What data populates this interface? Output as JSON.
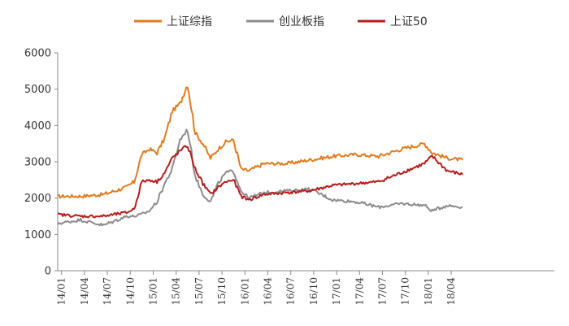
{
  "chart_data": {
    "type": "line",
    "title": "",
    "xlabel": "",
    "ylabel": "",
    "ylim": [
      0,
      6000
    ],
    "yticks": [
      0,
      1000,
      2000,
      3000,
      4000,
      5000,
      6000
    ],
    "xticks": [
      "14/01",
      "14/04",
      "14/07",
      "14/10",
      "15/01",
      "15/04",
      "15/07",
      "15/10",
      "16/01",
      "16/04",
      "16/07",
      "16/10",
      "17/01",
      "17/04",
      "17/07",
      "17/10",
      "18/01",
      "18/04"
    ],
    "legend_position": "top-center",
    "grid": false,
    "series": [
      {
        "name": "上证综指",
        "color": "#E07B1F",
        "x": [
          "2014-01",
          "2014-04",
          "2014-07",
          "2014-10",
          "2014-11",
          "2014-12",
          "2015-01",
          "2015-02",
          "2015-03",
          "2015-04",
          "2015-05",
          "2015-06",
          "2015-07",
          "2015-08",
          "2015-09",
          "2015-10",
          "2015-11",
          "2015-12",
          "2016-01",
          "2016-02",
          "2016-04",
          "2016-07",
          "2016-10",
          "2017-01",
          "2017-04",
          "2017-07",
          "2017-10",
          "2018-01",
          "2018-02",
          "2018-04",
          "2018-06"
        ],
        "values": [
          2050,
          2050,
          2100,
          2300,
          2450,
          3200,
          3350,
          3250,
          3650,
          4400,
          4600,
          5150,
          3800,
          3500,
          3100,
          3350,
          3550,
          3600,
          2800,
          2750,
          2950,
          2950,
          3050,
          3150,
          3200,
          3150,
          3350,
          3500,
          3250,
          3100,
          3050
        ]
      },
      {
        "name": "创业板指",
        "color": "#8C8C8C",
        "x": [
          "2014-01",
          "2014-04",
          "2014-07",
          "2014-10",
          "2014-11",
          "2014-12",
          "2015-01",
          "2015-02",
          "2015-03",
          "2015-04",
          "2015-05",
          "2015-06",
          "2015-07",
          "2015-08",
          "2015-09",
          "2015-10",
          "2015-11",
          "2015-12",
          "2016-01",
          "2016-02",
          "2016-04",
          "2016-07",
          "2016-10",
          "2017-01",
          "2017-04",
          "2017-07",
          "2017-10",
          "2018-01",
          "2018-02",
          "2018-04",
          "2018-06"
        ],
        "values": [
          1300,
          1400,
          1250,
          1500,
          1500,
          1550,
          1650,
          1900,
          2400,
          2800,
          3600,
          3900,
          2600,
          2100,
          1900,
          2400,
          2700,
          2750,
          2200,
          2000,
          2150,
          2200,
          2250,
          1950,
          1900,
          1750,
          1850,
          1800,
          1650,
          1800,
          1750
        ]
      },
      {
        "name": "上证50",
        "color": "#B71C1C",
        "x": [
          "2014-01",
          "2014-04",
          "2014-07",
          "2014-10",
          "2014-11",
          "2014-12",
          "2015-01",
          "2015-02",
          "2015-03",
          "2015-04",
          "2015-05",
          "2015-06",
          "2015-07",
          "2015-08",
          "2015-09",
          "2015-10",
          "2015-11",
          "2015-12",
          "2016-01",
          "2016-02",
          "2016-04",
          "2016-07",
          "2016-10",
          "2017-01",
          "2017-04",
          "2017-07",
          "2017-10",
          "2018-01",
          "2018-02",
          "2018-04",
          "2018-06"
        ],
        "values": [
          1550,
          1500,
          1500,
          1600,
          1700,
          2450,
          2500,
          2450,
          2700,
          3100,
          3300,
          3450,
          2800,
          2400,
          2100,
          2300,
          2450,
          2500,
          2050,
          1950,
          2100,
          2150,
          2200,
          2350,
          2400,
          2450,
          2700,
          2950,
          3150,
          2750,
          2650
        ]
      }
    ]
  }
}
